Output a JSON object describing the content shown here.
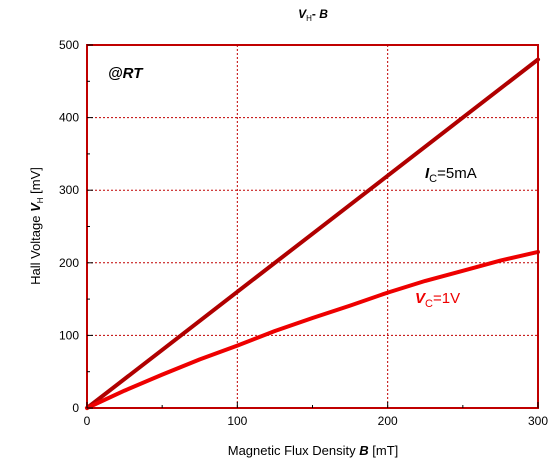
{
  "chart_data": {
    "type": "line",
    "title_main": "V",
    "title_sub": "H",
    "title_rest": "- ",
    "title_b": "B",
    "xlabel_main": "Magnetic Flux Density ",
    "xlabel_b": "B",
    "xlabel_unit": " [mT]",
    "ylabel_main": "Hall Voltage ",
    "ylabel_v": "V",
    "ylabel_sub": "H",
    "ylabel_unit": " [mV]",
    "annotation": "@RT",
    "xlim": [
      0,
      300
    ],
    "ylim": [
      0,
      500
    ],
    "xticks": [
      0,
      100,
      200,
      300
    ],
    "yticks": [
      0,
      100,
      200,
      300,
      400,
      500
    ],
    "grid": true,
    "series": [
      {
        "label_italic": "I",
        "label_sub": "C",
        "label_rest": "=5mA",
        "color": "#b00000",
        "x": [
          0,
          50,
          100,
          150,
          200,
          250,
          300
        ],
        "y": [
          0,
          80,
          160,
          240,
          320,
          400,
          480
        ]
      },
      {
        "label_italic": "V",
        "label_sub": "C",
        "label_rest": "=1V",
        "color": "#ee0000",
        "x": [
          0,
          25,
          50,
          75,
          100,
          125,
          150,
          175,
          200,
          225,
          250,
          275,
          300
        ],
        "y": [
          0,
          24,
          46,
          67,
          86,
          106,
          124,
          141,
          159,
          175,
          189,
          203,
          215
        ]
      }
    ]
  }
}
